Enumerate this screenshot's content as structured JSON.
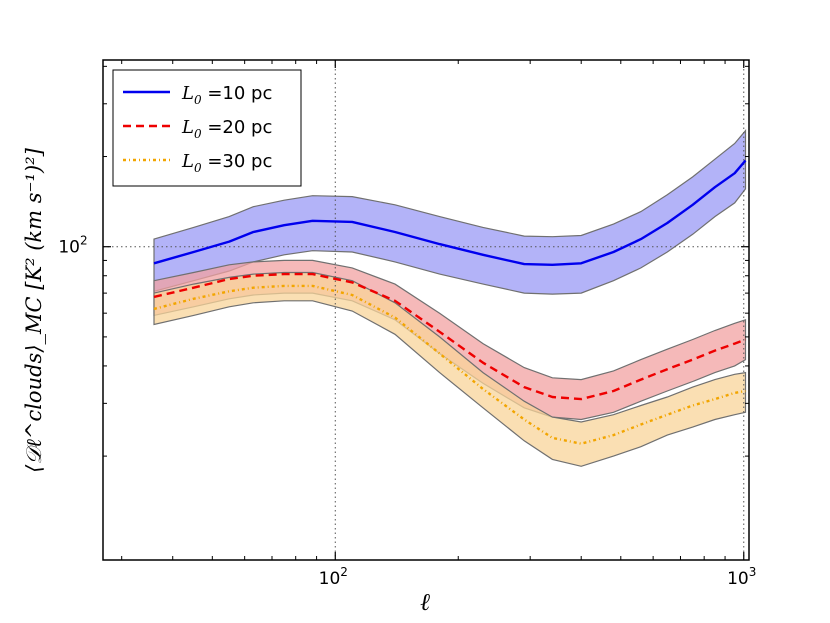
{
  "chart_data": {
    "type": "line",
    "title": "",
    "xlabel": "ℓ",
    "ylabel": "⟨𝒟ℓ^clouds⟩_MC [K² (km s⁻¹)²]",
    "xscale": "log",
    "yscale": "log",
    "xlim": [
      27,
      1030
    ],
    "ylim": [
      9,
      420
    ],
    "x_ticks": [
      {
        "value": 100,
        "base": "10",
        "exp": "2"
      },
      {
        "value": 1000,
        "base": "10",
        "exp": "3"
      }
    ],
    "y_ticks": [
      {
        "value": 100,
        "base": "10",
        "exp": "2"
      }
    ],
    "gridlines": {
      "x": [
        100,
        1000
      ],
      "y": [
        100
      ]
    },
    "legend_position": "top-left",
    "x": [
      36,
      45,
      55,
      63,
      75,
      88,
      110,
      140,
      180,
      230,
      290,
      340,
      400,
      480,
      560,
      650,
      750,
      850,
      950,
      1010
    ],
    "series": [
      {
        "name": "L₀ =10 pc",
        "label_base": "L",
        "label_sub": "0",
        "label_rest": " =10 pc",
        "color": "#0000ee",
        "fill": "#9a9af5",
        "dash": "solid",
        "values": [
          88,
          96,
          104,
          112,
          118,
          122,
          121,
          112,
          102,
          94,
          87.5,
          87,
          88,
          96,
          106,
          120,
          138,
          158,
          176,
          194
        ],
        "upper": [
          106,
          116,
          126,
          136,
          143,
          148,
          147,
          138,
          126,
          116,
          108.5,
          108,
          109,
          119,
          131,
          149,
          171,
          196,
          221,
          244
        ],
        "lower": [
          71,
          77,
          83,
          89,
          94,
          97,
          96,
          89,
          81,
          75,
          70,
          69.5,
          70,
          77,
          85,
          96,
          110,
          126,
          140,
          156
        ]
      },
      {
        "name": "L₀ =20 pc",
        "label_base": "L",
        "label_sub": "0",
        "label_rest": " =20 pc",
        "color": "#ee0000",
        "fill": "#f2a2a2",
        "dash": "8,5",
        "values": [
          68,
          73,
          78,
          80,
          81,
          81,
          76,
          66,
          52,
          41,
          34,
          31.5,
          31,
          33,
          36,
          39,
          42,
          45,
          47.5,
          49
        ],
        "upper": [
          77,
          82,
          87,
          89,
          90,
          90,
          85,
          75,
          60,
          47.5,
          39.5,
          36.5,
          36,
          38.5,
          42,
          45.5,
          49,
          52.5,
          55.5,
          57
        ],
        "lower": [
          59,
          63,
          67,
          69,
          70,
          70,
          66,
          57,
          44,
          35,
          29,
          27,
          26.5,
          28,
          30.5,
          33,
          35.5,
          38,
          40,
          42
        ]
      },
      {
        "name": "L₀ =30 pc",
        "label_base": "L",
        "label_sub": "0",
        "label_rest": " =30 pc",
        "color": "#f2a500",
        "fill": "#f8d49a",
        "dash": "3,3,1,3",
        "values": [
          62,
          67,
          71,
          73,
          74,
          74,
          69,
          58,
          44,
          33.5,
          26.5,
          23,
          22,
          23.5,
          25.5,
          27.5,
          29.5,
          31,
          32.5,
          33
        ],
        "upper": [
          70,
          75,
          79,
          81,
          82,
          82,
          77,
          65,
          50,
          38,
          30.5,
          27,
          26,
          27.5,
          29.5,
          31.5,
          34,
          36,
          37.5,
          38
        ],
        "lower": [
          55,
          59,
          63,
          65,
          66,
          66,
          61,
          51,
          38,
          29,
          22.5,
          19.5,
          18.5,
          20,
          21.5,
          23.5,
          25,
          26.5,
          27.5,
          28
        ]
      }
    ]
  }
}
